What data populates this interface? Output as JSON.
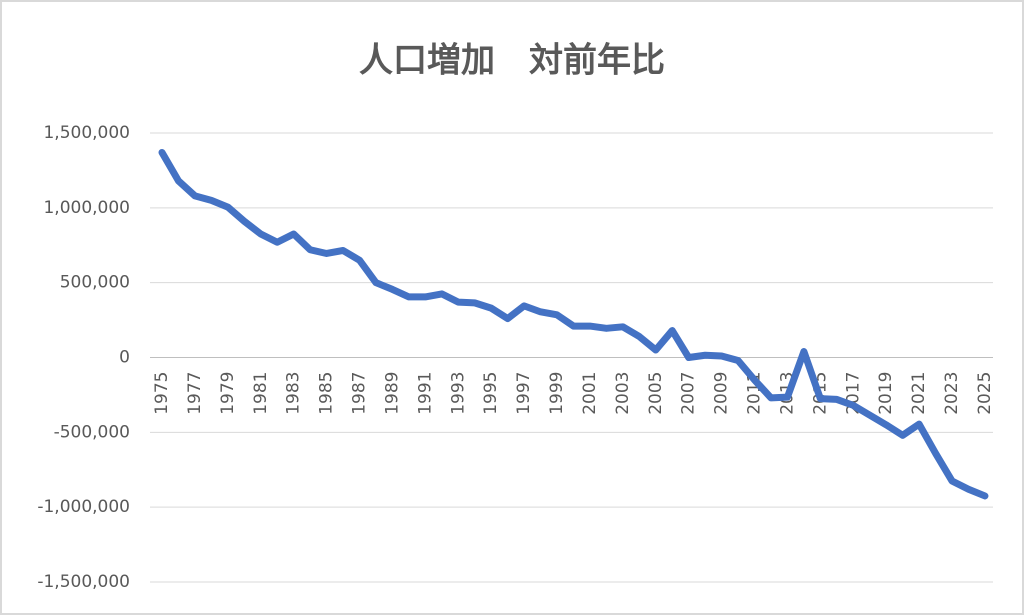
{
  "chart_data": {
    "type": "line",
    "title": "人口増加　対前年比",
    "x": [
      1975,
      1976,
      1977,
      1978,
      1979,
      1980,
      1981,
      1982,
      1983,
      1984,
      1985,
      1986,
      1987,
      1988,
      1989,
      1990,
      1991,
      1992,
      1993,
      1994,
      1995,
      1996,
      1997,
      1998,
      1999,
      2000,
      2001,
      2002,
      2003,
      2004,
      2005,
      2006,
      2007,
      2008,
      2009,
      2010,
      2011,
      2012,
      2013,
      2014,
      2015,
      2016,
      2017,
      2018,
      2019,
      2020,
      2021,
      2022,
      2023,
      2024,
      2025
    ],
    "series": [
      {
        "name": "人口増加",
        "color": "#4472c4",
        "values": [
          1370000,
          1180000,
          1080000,
          1050000,
          1005000,
          910000,
          825000,
          770000,
          825000,
          720000,
          695000,
          715000,
          650000,
          500000,
          455000,
          405000,
          405000,
          425000,
          370000,
          365000,
          330000,
          260000,
          345000,
          305000,
          285000,
          210000,
          210000,
          195000,
          205000,
          140000,
          50000,
          180000,
          0,
          15000,
          10000,
          -20000,
          -150000,
          -270000,
          -265000,
          40000,
          -275000,
          -280000,
          -320000,
          -385000,
          -450000,
          -520000,
          -445000,
          -640000,
          -825000,
          -880000,
          -925000
        ]
      }
    ],
    "xlim": [
      1974.27,
      2025.49
    ],
    "xticks": [
      1975,
      1977,
      1979,
      1981,
      1983,
      1985,
      1987,
      1989,
      1991,
      1993,
      1995,
      1997,
      1999,
      2001,
      2003,
      2005,
      2007,
      2009,
      2011,
      2013,
      2015,
      2017,
      2019,
      2021,
      2023,
      2025
    ],
    "ylim": [
      -1500000,
      1500000
    ],
    "yticks": [
      {
        "value": -1500000,
        "label": "-1,500,000"
      },
      {
        "value": -1000000,
        "label": "-1,000,000"
      },
      {
        "value": -500000,
        "label": "-500,000"
      },
      0,
      {
        "value": 500000,
        "label": "500,000"
      },
      {
        "value": 1000000,
        "label": "1,000,000"
      },
      {
        "value": 1500000,
        "label": "1,500,000"
      }
    ],
    "grid": true
  }
}
